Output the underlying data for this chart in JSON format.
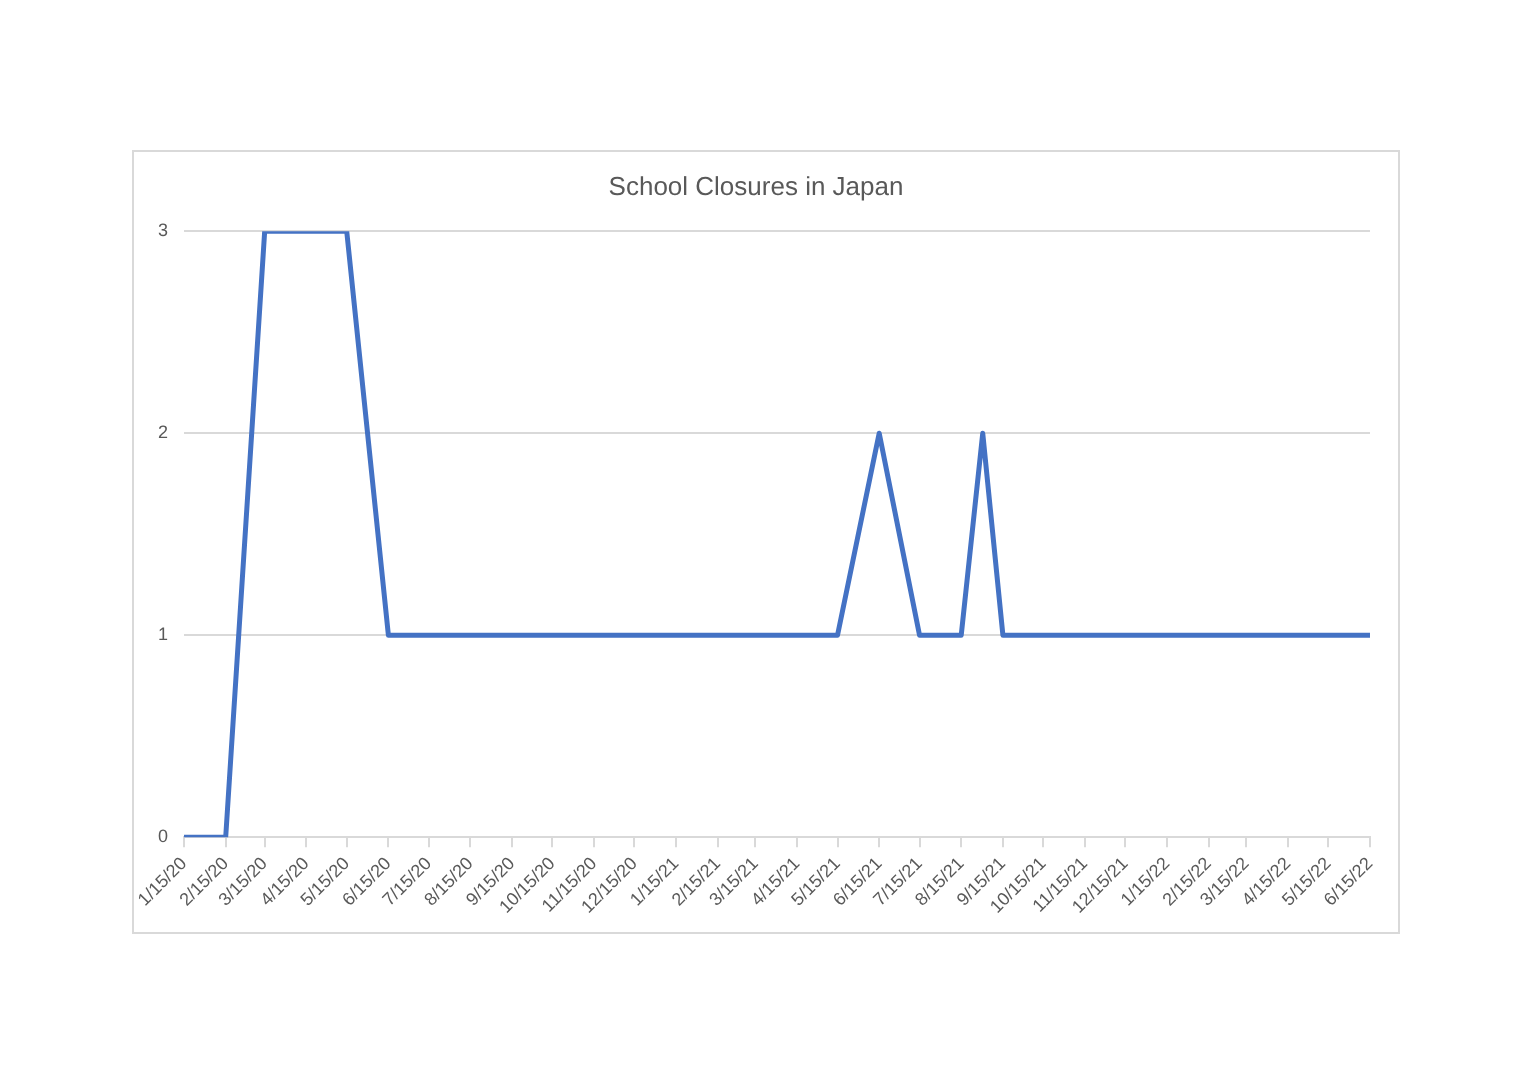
{
  "chart_data": {
    "type": "line",
    "title": "School Closures in Japan",
    "x": [
      "2020-01-15",
      "2020-02-15",
      "2020-03-15",
      "2020-05-15",
      "2020-06-15",
      "2021-05-15",
      "2021-06-15",
      "2021-07-15",
      "2021-08-15",
      "2021-08-31",
      "2021-09-15",
      "2022-06-15"
    ],
    "series": [
      {
        "color": "#4472c4",
        "values": [
          0,
          0,
          3,
          3,
          1,
          1,
          2,
          1,
          1,
          2,
          1,
          1
        ]
      }
    ],
    "xlim": [
      "2020-01-15",
      "2022-06-15"
    ],
    "xticks": [
      {
        "value": "2020-01-15",
        "label": "1/15/20"
      },
      {
        "value": "2020-02-15",
        "label": "2/15/20"
      },
      {
        "value": "2020-03-15",
        "label": "3/15/20"
      },
      {
        "value": "2020-04-15",
        "label": "4/15/20"
      },
      {
        "value": "2020-05-15",
        "label": "5/15/20"
      },
      {
        "value": "2020-06-15",
        "label": "6/15/20"
      },
      {
        "value": "2020-07-15",
        "label": "7/15/20"
      },
      {
        "value": "2020-08-15",
        "label": "8/15/20"
      },
      {
        "value": "2020-09-15",
        "label": "9/15/20"
      },
      {
        "value": "2020-10-15",
        "label": "10/15/20"
      },
      {
        "value": "2020-11-15",
        "label": "11/15/20"
      },
      {
        "value": "2020-12-15",
        "label": "12/15/20"
      },
      {
        "value": "2021-01-15",
        "label": "1/15/21"
      },
      {
        "value": "2021-02-15",
        "label": "2/15/21"
      },
      {
        "value": "2021-03-15",
        "label": "3/15/21"
      },
      {
        "value": "2021-04-15",
        "label": "4/15/21"
      },
      {
        "value": "2021-05-15",
        "label": "5/15/21"
      },
      {
        "value": "2021-06-15",
        "label": "6/15/21"
      },
      {
        "value": "2021-07-15",
        "label": "7/15/21"
      },
      {
        "value": "2021-08-15",
        "label": "8/15/21"
      },
      {
        "value": "2021-09-15",
        "label": "9/15/21"
      },
      {
        "value": "2021-10-15",
        "label": "10/15/21"
      },
      {
        "value": "2021-11-15",
        "label": "11/15/21"
      },
      {
        "value": "2021-12-15",
        "label": "12/15/21"
      },
      {
        "value": "2022-01-15",
        "label": "1/15/22"
      },
      {
        "value": "2022-02-15",
        "label": "2/15/22"
      },
      {
        "value": "2022-03-15",
        "label": "3/15/22"
      },
      {
        "value": "2022-04-15",
        "label": "4/15/22"
      },
      {
        "value": "2022-05-15",
        "label": "5/15/22"
      },
      {
        "value": "2022-06-15",
        "label": "6/15/22"
      }
    ],
    "ylim": [
      0,
      3
    ],
    "yticks": [
      0,
      1,
      2,
      3
    ],
    "grid": "y",
    "legend": false,
    "marker": "none",
    "line_style": "solid"
  }
}
